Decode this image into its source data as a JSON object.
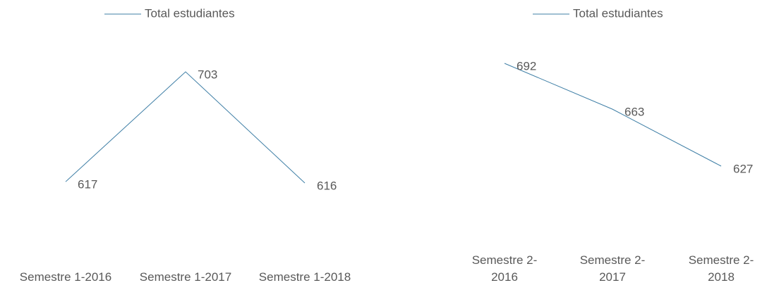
{
  "chart_data": [
    {
      "type": "line",
      "categories": [
        "Semestre 1-2016",
        "Semestre 1-2017",
        "Semestre 1-2018"
      ],
      "series": [
        {
          "name": "Total estudiantes",
          "color": "#3f7fa6",
          "values": [
            617,
            703,
            616
          ]
        }
      ]
    },
    {
      "type": "line",
      "categories": [
        "Semestre 2-2016",
        "Semestre 2-2017",
        "Semestre 2-2018"
      ],
      "series": [
        {
          "name": "Total estudiantes",
          "color": "#3f7fa6",
          "values": [
            692,
            663,
            627
          ]
        }
      ]
    }
  ]
}
